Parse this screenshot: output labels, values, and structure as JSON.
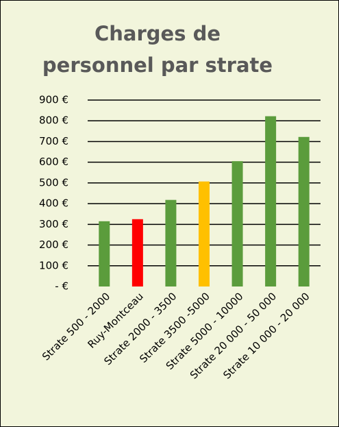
{
  "chart_data": {
    "type": "bar",
    "title": "Charges de personnel par strate",
    "categories": [
      "Strate 500 - 2000",
      "Ruy-Montceau",
      "Strate 2000 - 3500",
      "Strate 3500 -5000",
      "Strate 5000 - 10000",
      "Strate 20 000 - 50 000",
      "Strate 10 000 - 20 000"
    ],
    "values": [
      315,
      325,
      418,
      507,
      605,
      822,
      722
    ],
    "colors": [
      "#5b9c3c",
      "#ff0000",
      "#5b9c3c",
      "#ffc000",
      "#5b9c3c",
      "#5b9c3c",
      "#5b9c3c"
    ],
    "ylim": [
      0,
      900
    ],
    "yticks": [
      {
        "value": 0,
        "label": "-   €"
      },
      {
        "value": 100,
        "label": "100 €"
      },
      {
        "value": 200,
        "label": "200 €"
      },
      {
        "value": 300,
        "label": "300 €"
      },
      {
        "value": 400,
        "label": "400 €"
      },
      {
        "value": 500,
        "label": "500 €"
      },
      {
        "value": 600,
        "label": "600 €"
      },
      {
        "value": 700,
        "label": "700 €"
      },
      {
        "value": 800,
        "label": "800 €"
      },
      {
        "value": 900,
        "label": "900 €"
      }
    ],
    "grid": true
  }
}
